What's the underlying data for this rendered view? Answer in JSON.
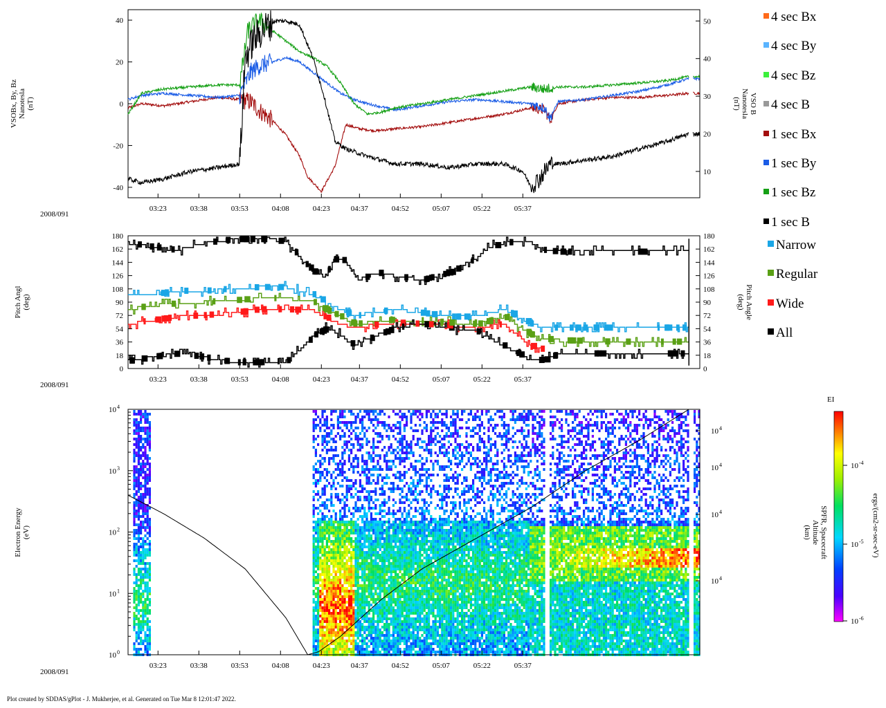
{
  "footer": "Plot created by SDDAS/gPlot - J. Mukherjee, et al.  Generated on Tue Mar 8 12:01:47 2022.",
  "date_label": "2008/091",
  "time_ticks": [
    "03:23",
    "03:38",
    "03:53",
    "04:08",
    "04:23",
    "04:37",
    "04:52",
    "05:07",
    "05:22",
    "05:37"
  ],
  "colors": {
    "bx4": "#ff6a1a",
    "by4": "#5ab4ff",
    "bz4": "#3cf03c",
    "b4": "#999999",
    "bx1": "#a30d0d",
    "by1": "#1a5ce6",
    "bz1": "#15a015",
    "b1": "#000000",
    "narrow": "#1aa6e6",
    "regular": "#5aa015",
    "wide": "#ff1a1a",
    "all": "#000000"
  },
  "legend": {
    "mag": [
      {
        "label": "4 sec Bx",
        "color_key": "bx4"
      },
      {
        "label": "4 sec By",
        "color_key": "by4"
      },
      {
        "label": "4 sec Bz",
        "color_key": "bz4"
      },
      {
        "label": "4 sec B",
        "color_key": "b4"
      },
      {
        "label": "1 sec Bx",
        "color_key": "bx1"
      },
      {
        "label": "1 sec By",
        "color_key": "by1"
      },
      {
        "label": "1 sec Bz",
        "color_key": "bz1"
      },
      {
        "label": "1 sec B",
        "color_key": "b1"
      }
    ],
    "pitch": [
      {
        "label": "Narrow",
        "color_key": "narrow"
      },
      {
        "label": "Regular",
        "color_key": "regular"
      },
      {
        "label": "Wide",
        "color_key": "wide"
      },
      {
        "label": "All",
        "color_key": "all"
      }
    ]
  },
  "chart_data": [
    {
      "type": "line",
      "title": "",
      "ylabel_left": [
        "VSOBx, By, Bz",
        "Nanotesla",
        "(nT)"
      ],
      "ylabel_right": [
        "VSO B",
        "Nanotesla",
        "(nT)"
      ],
      "ylim_left": [
        -45,
        45
      ],
      "ylim_right": [
        3,
        53
      ],
      "yticks_left": [
        "40",
        "20",
        "0",
        "-20",
        "-40"
      ],
      "yticks_right": [
        "50",
        "40",
        "30",
        "20",
        "10"
      ],
      "x_minutes_range": [
        192,
        402
      ],
      "series": [
        {
          "name": "1 sec Bx",
          "color_key": "bx1",
          "axis": "left",
          "x": [
            192,
            197,
            205,
            215,
            225,
            233,
            237,
            240,
            245,
            250,
            255,
            258,
            263,
            268,
            272,
            277,
            283,
            290,
            300,
            310,
            320,
            330,
            340,
            345,
            347,
            350,
            355,
            360,
            370,
            380,
            390,
            398
          ],
          "y": [
            -2,
            0,
            -1,
            1,
            3,
            2,
            1,
            -3,
            -8,
            -15,
            -25,
            -35,
            -42,
            -30,
            -10,
            -12,
            -13,
            -12,
            -11,
            -9,
            -7,
            -5,
            -2,
            -3,
            -8,
            0,
            1,
            2,
            3,
            3,
            4,
            5
          ]
        },
        {
          "name": "1 sec By",
          "color_key": "by1",
          "axis": "left",
          "x": [
            192,
            197,
            205,
            215,
            225,
            233,
            237,
            240,
            245,
            250,
            255,
            260,
            265,
            270,
            275,
            280,
            290,
            300,
            310,
            320,
            330,
            340,
            345,
            347,
            350,
            360,
            370,
            380,
            390,
            398
          ],
          "y": [
            2,
            4,
            5,
            4,
            3,
            4,
            15,
            18,
            20,
            22,
            20,
            15,
            10,
            5,
            2,
            0,
            -3,
            -1,
            1,
            2,
            1,
            0,
            -2,
            -7,
            1,
            2,
            4,
            6,
            9,
            12
          ]
        },
        {
          "name": "1 sec Bz",
          "color_key": "bz1",
          "axis": "left",
          "x": [
            192,
            197,
            205,
            215,
            225,
            233,
            236,
            240,
            245,
            250,
            255,
            260,
            265,
            270,
            275,
            280,
            285,
            290,
            300,
            310,
            320,
            330,
            340,
            345,
            350,
            360,
            370,
            380,
            390,
            398
          ],
          "y": [
            -5,
            5,
            7,
            8,
            9,
            9,
            35,
            40,
            35,
            30,
            25,
            22,
            18,
            10,
            0,
            -5,
            -4,
            -2,
            0,
            2,
            4,
            6,
            8,
            7,
            8,
            8,
            9,
            10,
            11,
            13
          ]
        },
        {
          "name": "1 sec B",
          "color_key": "b1",
          "axis": "right",
          "x": [
            192,
            197,
            205,
            215,
            225,
            233,
            235,
            238,
            242,
            246,
            250,
            255,
            260,
            264,
            268,
            272,
            276,
            280,
            285,
            290,
            300,
            310,
            320,
            330,
            337,
            340,
            343,
            347,
            350,
            360,
            370,
            380,
            390,
            398
          ],
          "y": [
            8,
            7,
            8,
            10,
            11,
            12,
            40,
            45,
            48,
            50,
            50,
            49,
            40,
            30,
            18,
            16,
            15,
            14,
            13,
            12,
            12,
            11,
            12,
            12,
            10,
            6,
            8,
            12,
            12,
            13,
            14,
            16,
            18,
            20
          ]
        }
      ]
    },
    {
      "type": "line",
      "title": "",
      "ylabel_left": [
        "Pitch Angl",
        "(deg)"
      ],
      "ylabel_right": [
        "Pitch Angle",
        "(deg)"
      ],
      "ylim": [
        0,
        180
      ],
      "yticks": [
        "180",
        "162",
        "144",
        "126",
        "108",
        "90",
        "72",
        "54",
        "36",
        "18",
        "0"
      ],
      "x_minutes_range": [
        192,
        402
      ],
      "series": [
        {
          "name": "All upper",
          "color_key": "all",
          "x": [
            192,
            200,
            210,
            220,
            230,
            240,
            245,
            250,
            255,
            260,
            264,
            268,
            272,
            276,
            280,
            285,
            290,
            300,
            305,
            310,
            315,
            320,
            325,
            330,
            335,
            340,
            345,
            350,
            360,
            370,
            380,
            390,
            398
          ],
          "y": [
            170,
            165,
            160,
            170,
            175,
            175,
            175,
            170,
            150,
            130,
            125,
            150,
            145,
            120,
            125,
            130,
            125,
            120,
            125,
            130,
            140,
            150,
            165,
            170,
            172,
            170,
            160,
            158,
            158,
            158,
            158,
            158,
            158
          ]
        },
        {
          "name": "Narrow",
          "color_key": "narrow",
          "x": [
            192,
            200,
            210,
            220,
            230,
            240,
            250,
            260,
            264,
            270,
            275,
            280,
            290,
            300,
            310,
            320,
            330,
            340,
            345,
            350,
            360,
            370,
            380,
            390,
            398
          ],
          "y": [
            100,
            100,
            105,
            105,
            108,
            110,
            110,
            100,
            90,
            80,
            70,
            75,
            80,
            75,
            70,
            70,
            80,
            60,
            55,
            55,
            55,
            55,
            55,
            55,
            55
          ]
        },
        {
          "name": "Regular",
          "color_key": "regular",
          "x": [
            192,
            200,
            210,
            220,
            230,
            240,
            250,
            260,
            264,
            270,
            275,
            280,
            290,
            300,
            310,
            320,
            330,
            340,
            345,
            350,
            360,
            370,
            380,
            390,
            398
          ],
          "y": [
            80,
            85,
            88,
            90,
            92,
            95,
            95,
            90,
            80,
            70,
            60,
            62,
            66,
            65,
            62,
            60,
            70,
            45,
            40,
            38,
            37,
            36,
            36,
            36,
            36
          ]
        },
        {
          "name": "Wide",
          "color_key": "wide",
          "x": [
            192,
            200,
            210,
            220,
            230,
            240,
            250,
            260,
            264,
            270,
            275,
            280,
            290,
            300,
            310,
            320,
            330,
            340,
            345
          ],
          "y": [
            60,
            65,
            70,
            72,
            75,
            80,
            80,
            78,
            70,
            60,
            55,
            58,
            62,
            60,
            58,
            56,
            60,
            30,
            25
          ]
        },
        {
          "name": "All lower",
          "color_key": "all",
          "x": [
            192,
            200,
            210,
            220,
            230,
            240,
            250,
            255,
            260,
            265,
            270,
            275,
            280,
            290,
            300,
            310,
            320,
            330,
            335,
            340,
            345,
            350,
            360,
            370,
            380,
            390,
            398
          ],
          "y": [
            10,
            15,
            20,
            15,
            8,
            8,
            10,
            25,
            45,
            55,
            45,
            30,
            40,
            55,
            60,
            55,
            50,
            30,
            20,
            10,
            12,
            20,
            20,
            20,
            20,
            20,
            20
          ]
        }
      ]
    },
    {
      "type": "heatmap",
      "title": "",
      "ylabel_left": [
        "Electron Energy",
        "(eV)"
      ],
      "ylabel_right": [
        "SPFR, Spacecraft",
        "Altitude",
        "(km)"
      ],
      "yscale": "log",
      "ylim": [
        1,
        10000
      ],
      "yticks_left": [
        "10",
        "10",
        "10",
        "10",
        "10"
      ],
      "yticks_left_exp": [
        "0",
        "1",
        "2",
        "3",
        "4"
      ],
      "yticks_right": [
        "10",
        "10",
        "10",
        "10"
      ],
      "yticks_right_exp": [
        "4",
        "4",
        "4",
        "4"
      ],
      "colorbar_title": "EI",
      "colorbar_label": "ergs/(cm2-sr-sec-eV)",
      "colorbar_ticks": [
        "10",
        "10",
        "10"
      ],
      "colorbar_ticks_exp": [
        "-4",
        "-5",
        "-6"
      ],
      "x_minutes_range": [
        192,
        402
      ],
      "altitude_overlay": {
        "x": [
          192,
          205,
          220,
          235,
          250,
          258,
          262,
          270,
          285,
          300,
          320,
          340,
          360,
          380,
          398
        ],
        "y_log10_ev": [
          2.6,
          2.3,
          1.9,
          1.4,
          0.6,
          0.0,
          0.05,
          0.3,
          0.9,
          1.4,
          1.9,
          2.4,
          3.0,
          3.5,
          4.0
        ]
      }
    }
  ]
}
